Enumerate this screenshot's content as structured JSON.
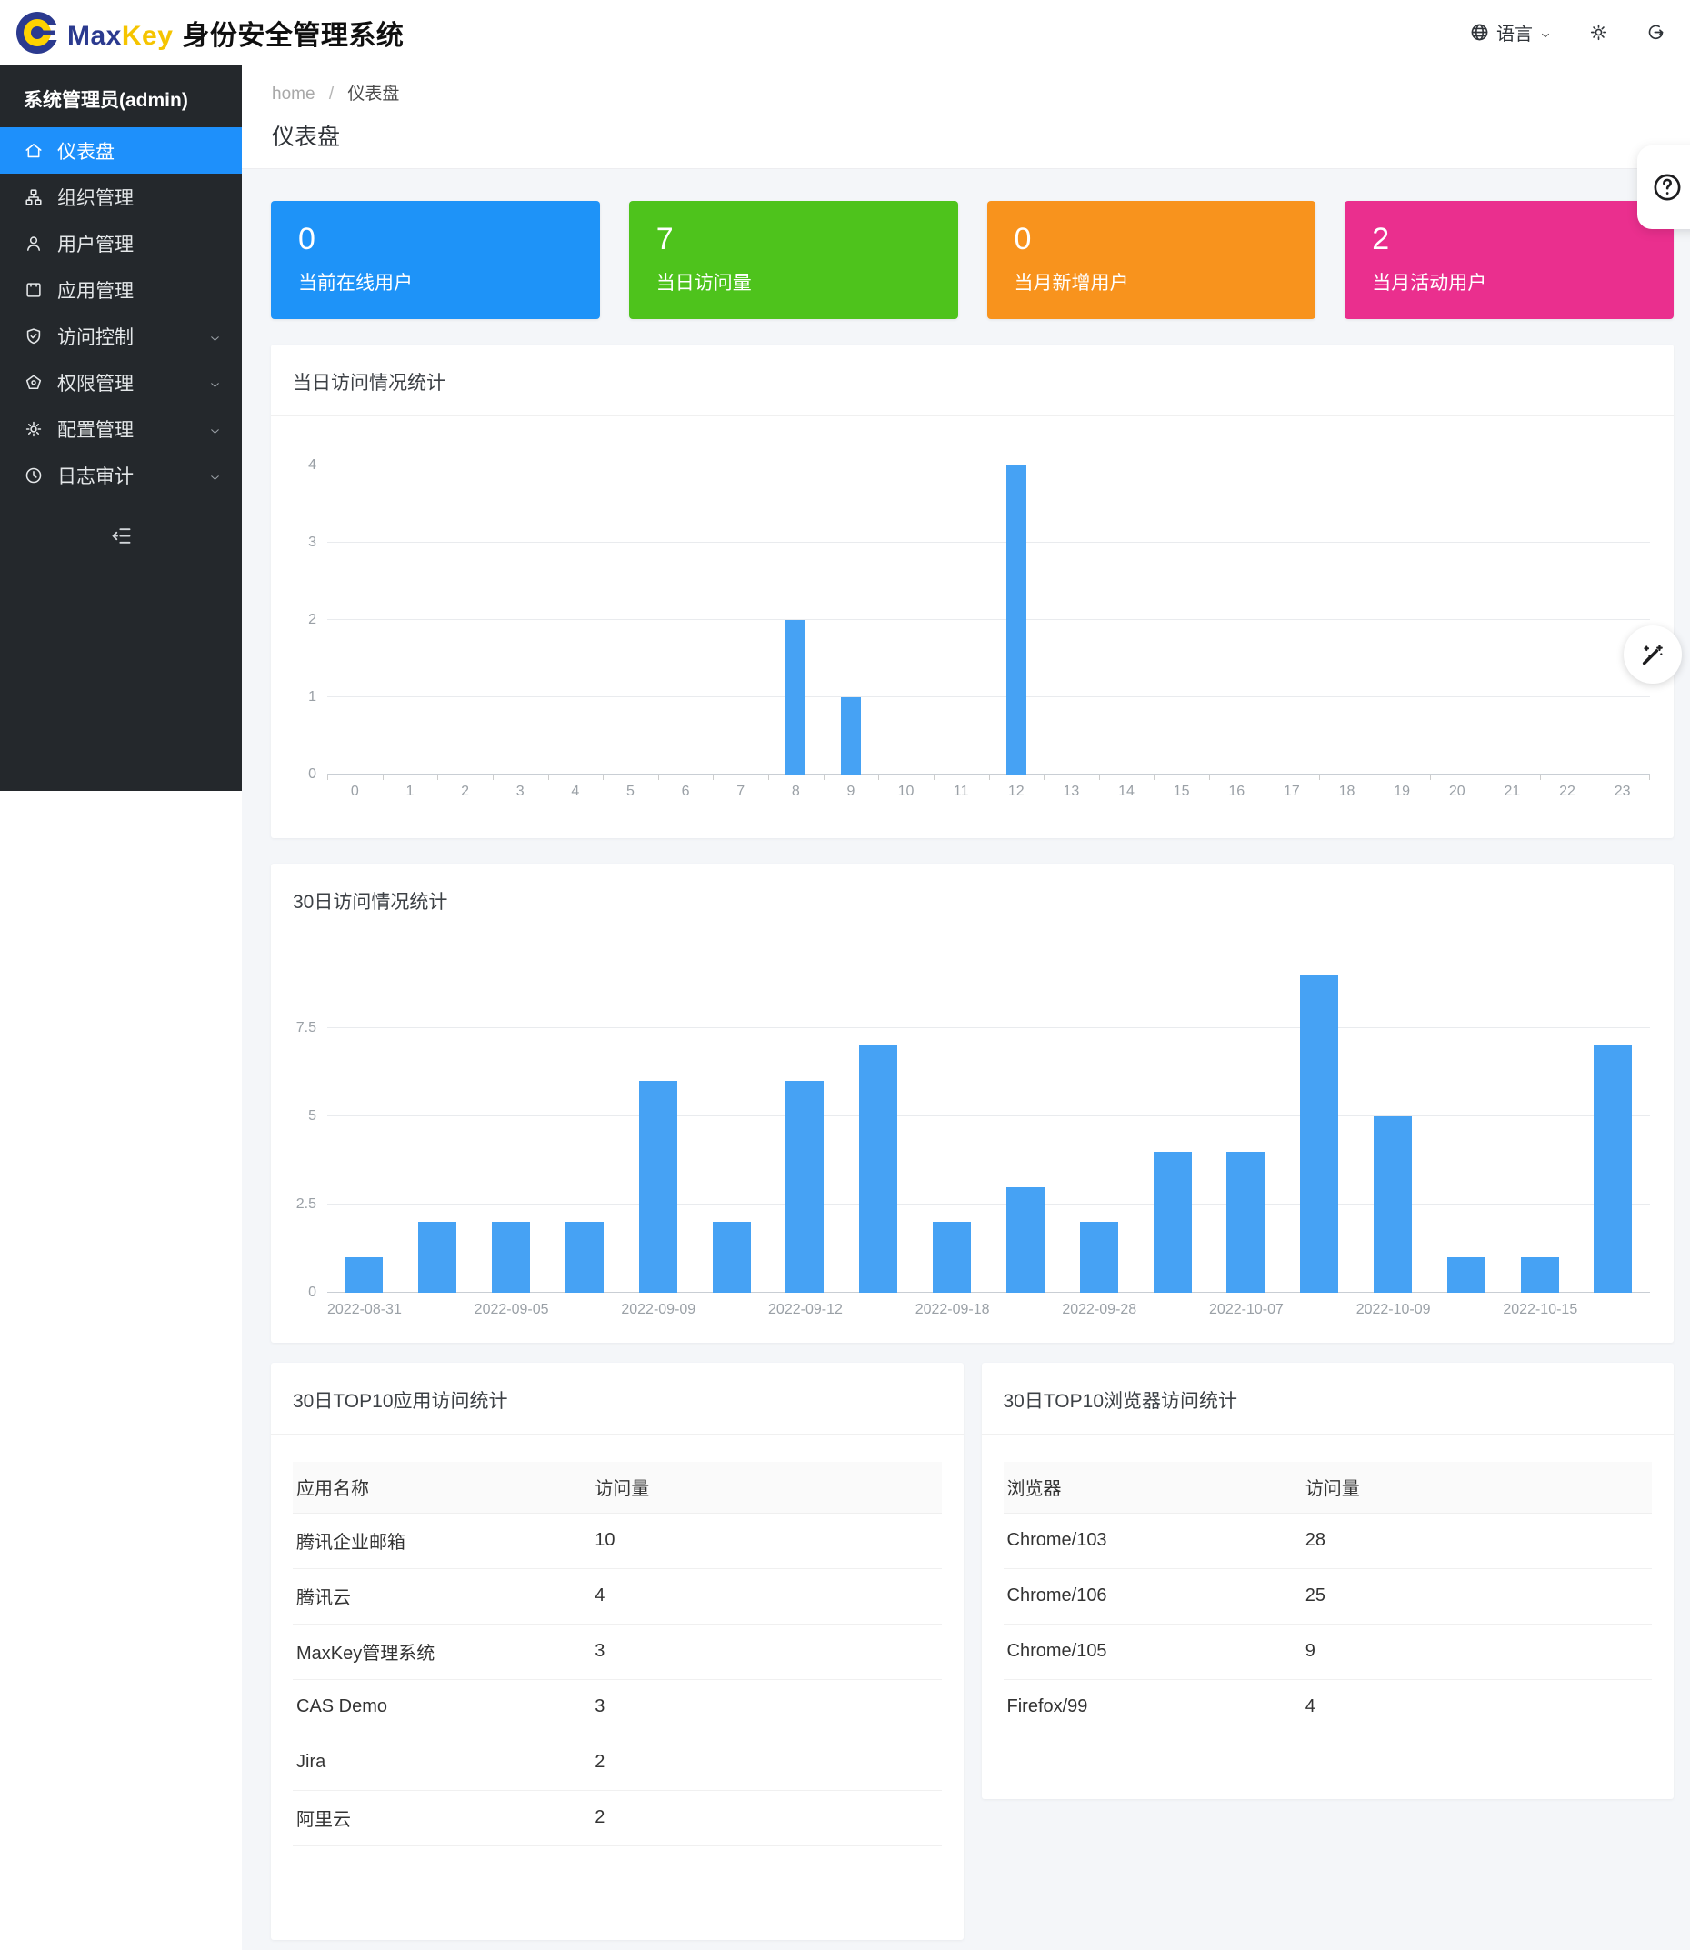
{
  "header": {
    "brand_max": "Max",
    "brand_key": "Key",
    "brand_suffix": "身份安全管理系统",
    "language_label": "语言",
    "actions": [
      {
        "icon": "globe-icon",
        "label": "语言"
      },
      {
        "icon": "gear-icon"
      },
      {
        "icon": "logout-icon"
      }
    ]
  },
  "sidebar": {
    "user": "系统管理员(admin)",
    "items": [
      {
        "label": "仪表盘",
        "icon": "home-icon",
        "active": true,
        "expandable": false
      },
      {
        "label": "组织管理",
        "icon": "sitemap-icon",
        "active": false,
        "expandable": false
      },
      {
        "label": "用户管理",
        "icon": "user-icon",
        "active": false,
        "expandable": false
      },
      {
        "label": "应用管理",
        "icon": "app-window-icon",
        "active": false,
        "expandable": false
      },
      {
        "label": "访问控制",
        "icon": "shield-check-icon",
        "active": false,
        "expandable": true
      },
      {
        "label": "权限管理",
        "icon": "pentagon-icon",
        "active": false,
        "expandable": true
      },
      {
        "label": "配置管理",
        "icon": "gear-icon",
        "active": false,
        "expandable": true
      },
      {
        "label": "日志审计",
        "icon": "clock-icon",
        "active": false,
        "expandable": true
      }
    ],
    "collapse_icon": "collapse-menu-icon"
  },
  "breadcrumb": {
    "home": "home",
    "separator": "/",
    "current": "仪表盘"
  },
  "page_title": "仪表盘",
  "stat_cards": [
    {
      "value": "0",
      "label": "当前在线用户",
      "color": "#1e93f8"
    },
    {
      "value": "7",
      "label": "当日访问量",
      "color": "#4ec31c"
    },
    {
      "value": "0",
      "label": "当月新增用户",
      "color": "#f8931d"
    },
    {
      "value": "2",
      "label": "当月活动用户",
      "color": "#ea2f8e"
    }
  ],
  "chart_data": [
    {
      "type": "bar",
      "title": "当日访问情况统计",
      "categories": [
        "0",
        "1",
        "2",
        "3",
        "4",
        "5",
        "6",
        "7",
        "8",
        "9",
        "10",
        "11",
        "12",
        "13",
        "14",
        "15",
        "16",
        "17",
        "18",
        "19",
        "20",
        "21",
        "22",
        "23"
      ],
      "values": [
        0,
        0,
        0,
        0,
        0,
        0,
        0,
        0,
        2,
        1,
        0,
        0,
        4,
        0,
        0,
        0,
        0,
        0,
        0,
        0,
        0,
        0,
        0,
        0
      ],
      "xlabel": "",
      "ylabel": "",
      "ylim": [
        0,
        4
      ],
      "yticks": [
        0,
        1,
        2,
        3,
        4
      ],
      "grid": true,
      "legend": "none",
      "bar_color": "#46a2f4",
      "show_boundary_ticks": true
    },
    {
      "type": "bar",
      "title": "30日访问情况统计",
      "categories": [
        "2022-08-31",
        "",
        "2022-09-05",
        "",
        "2022-09-09",
        "",
        "2022-09-12",
        "",
        "2022-09-18",
        "",
        "2022-09-28",
        "",
        "2022-10-07",
        "",
        "2022-10-09",
        "",
        "2022-10-15",
        ""
      ],
      "values": [
        1,
        2,
        2,
        2,
        6,
        2,
        6,
        7,
        2,
        3,
        2,
        4,
        4,
        9,
        5,
        1,
        1,
        7
      ],
      "xlabel": "",
      "ylabel": "",
      "ylim": [
        0,
        9.4
      ],
      "yticks": [
        0,
        2.5,
        5,
        7.5
      ],
      "grid": true,
      "legend": "none",
      "bar_color": "#46a2f4",
      "show_boundary_ticks": false
    }
  ],
  "tables": [
    {
      "title": "30日TOP10应用访问统计",
      "columns": [
        "应用名称",
        "访问量"
      ],
      "rows": [
        [
          "腾讯企业邮箱",
          "10"
        ],
        [
          "腾讯云",
          "4"
        ],
        [
          "MaxKey管理系统",
          "3"
        ],
        [
          "CAS Demo",
          "3"
        ],
        [
          "Jira",
          "2"
        ],
        [
          "阿里云",
          "2"
        ]
      ]
    },
    {
      "title": "30日TOP10浏览器访问统计",
      "columns": [
        "浏览器",
        "访问量"
      ],
      "rows": [
        [
          "Chrome/103",
          "28"
        ],
        [
          "Chrome/106",
          "25"
        ],
        [
          "Chrome/105",
          "9"
        ],
        [
          "Firefox/99",
          "4"
        ]
      ]
    }
  ],
  "floating": {
    "help_icon": "question-circle-icon",
    "wand_icon": "magic-wand-icon"
  }
}
